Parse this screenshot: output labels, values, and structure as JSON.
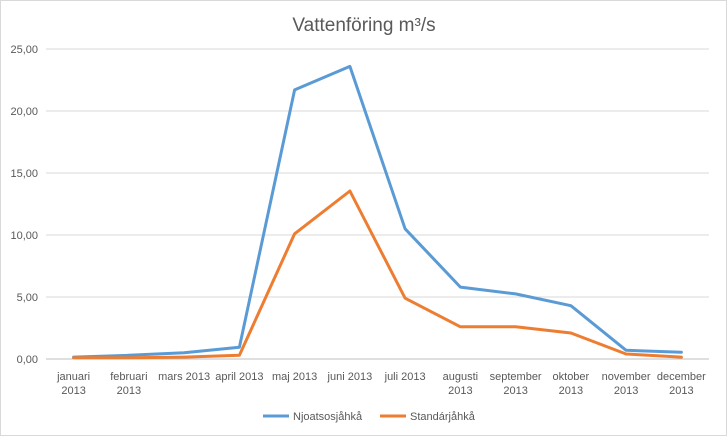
{
  "chart_data": {
    "type": "line",
    "title": "Vattenföring m³/s",
    "categories": [
      [
        "januari",
        "2013"
      ],
      [
        "februari",
        "2013"
      ],
      [
        "mars 2013"
      ],
      [
        "april 2013"
      ],
      [
        "maj 2013"
      ],
      [
        "juni 2013"
      ],
      [
        "juli 2013"
      ],
      [
        "augusti",
        "2013"
      ],
      [
        "september",
        "2013"
      ],
      [
        "oktober",
        "2013"
      ],
      [
        "november",
        "2013"
      ],
      [
        "december",
        "2013"
      ]
    ],
    "y_ticks": [
      "0,00",
      "5,00",
      "10,00",
      "15,00",
      "20,00",
      "25,00"
    ],
    "ylim": [
      0,
      25
    ],
    "grid": true,
    "legend_position": "bottom",
    "series": [
      {
        "name": "Njoatsosjåhkå",
        "color": "#5b9bd5",
        "values": [
          0.15,
          0.3,
          0.5,
          0.95,
          21.7,
          23.6,
          10.5,
          5.8,
          5.25,
          4.3,
          0.7,
          0.55
        ]
      },
      {
        "name": "Standárjåhkå",
        "color": "#ed7d31",
        "values": [
          0.1,
          0.1,
          0.15,
          0.3,
          10.1,
          13.55,
          4.9,
          2.6,
          2.6,
          2.1,
          0.4,
          0.15
        ]
      }
    ]
  }
}
